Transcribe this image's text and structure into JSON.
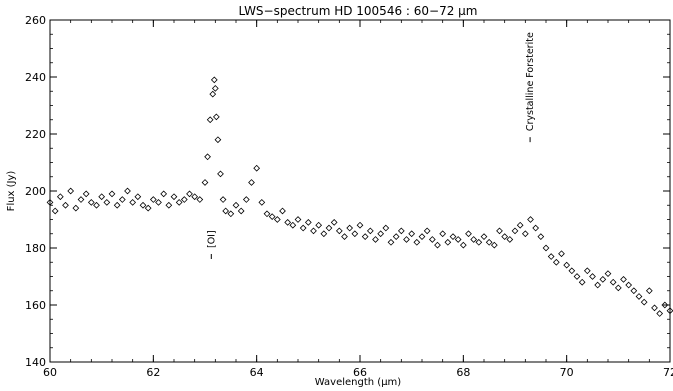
{
  "chart_data": {
    "type": "scatter",
    "title": "LWS−spectrum HD 100546 : 60−72 μm",
    "xlabel": "Wavelength (μm)",
    "ylabel": "Flux (Jy)",
    "xlim": [
      60,
      72
    ],
    "ylim": [
      140,
      260
    ],
    "xticks": [
      "60",
      "62",
      "64",
      "66",
      "68",
      "70",
      "72"
    ],
    "yticks": [
      "140",
      "160",
      "180",
      "200",
      "220",
      "240",
      "260"
    ],
    "marker": "diamond",
    "grid": false,
    "annotations": [
      {
        "text": "[OI]",
        "x": 63.18,
        "y": 180
      },
      {
        "text": "Crystalline Forsterite",
        "x": 69.35,
        "y": 221
      }
    ],
    "series": [
      {
        "x": [
          60.0,
          60.1,
          60.2,
          60.3,
          60.4,
          60.5,
          60.6,
          60.7,
          60.8,
          60.9,
          61.0,
          61.1,
          61.2,
          61.3,
          61.4,
          61.5,
          61.6,
          61.7,
          61.8,
          61.9,
          62.0,
          62.1,
          62.2,
          62.3,
          62.4,
          62.5,
          62.6,
          62.7,
          62.8,
          62.9,
          63.0,
          63.05,
          63.1,
          63.15,
          63.18,
          63.2,
          63.22,
          63.25,
          63.3,
          63.35,
          63.4,
          63.5,
          63.6,
          63.7,
          63.8,
          63.9,
          64.0,
          64.1,
          64.2,
          64.3,
          64.4,
          64.5,
          64.6,
          64.7,
          64.8,
          64.9,
          65.0,
          65.1,
          65.2,
          65.3,
          65.4,
          65.5,
          65.6,
          65.7,
          65.8,
          65.9,
          66.0,
          66.1,
          66.2,
          66.3,
          66.4,
          66.5,
          66.6,
          66.7,
          66.8,
          66.9,
          67.0,
          67.1,
          67.2,
          67.3,
          67.4,
          67.5,
          67.6,
          67.7,
          67.8,
          67.9,
          68.0,
          68.1,
          68.2,
          68.3,
          68.4,
          68.5,
          68.6,
          68.7,
          68.8,
          68.9,
          69.0,
          69.1,
          69.2,
          69.3,
          69.4,
          69.5,
          69.6,
          69.7,
          69.8,
          69.9,
          70.0,
          70.1,
          70.2,
          70.3,
          70.4,
          70.5,
          70.6,
          70.7,
          70.8,
          70.9,
          71.0,
          71.1,
          71.2,
          71.3,
          71.4,
          71.5,
          71.6,
          71.7,
          71.8,
          71.9,
          72.0
        ],
        "y": [
          196,
          193,
          198,
          195,
          200,
          194,
          197,
          199,
          196,
          195,
          198,
          196,
          199,
          195,
          197,
          200,
          196,
          198,
          195,
          194,
          197,
          196,
          199,
          195,
          198,
          196,
          197,
          199,
          198,
          197,
          203,
          212,
          225,
          234,
          239,
          236,
          226,
          218,
          206,
          197,
          193,
          192,
          195,
          193,
          197,
          203,
          208,
          196,
          192,
          191,
          190,
          193,
          189,
          188,
          190,
          187,
          189,
          186,
          188,
          185,
          187,
          189,
          186,
          184,
          187,
          185,
          188,
          184,
          186,
          183,
          185,
          187,
          182,
          184,
          186,
          183,
          185,
          182,
          184,
          186,
          183,
          181,
          185,
          182,
          184,
          183,
          181,
          185,
          183,
          182,
          184,
          182,
          181,
          186,
          184,
          183,
          186,
          188,
          185,
          190,
          187,
          184,
          180,
          177,
          175,
          178,
          174,
          172,
          170,
          168,
          172,
          170,
          167,
          169,
          171,
          168,
          166,
          169,
          167,
          165,
          163,
          161,
          165,
          159,
          157,
          160,
          158
        ]
      }
    ]
  }
}
